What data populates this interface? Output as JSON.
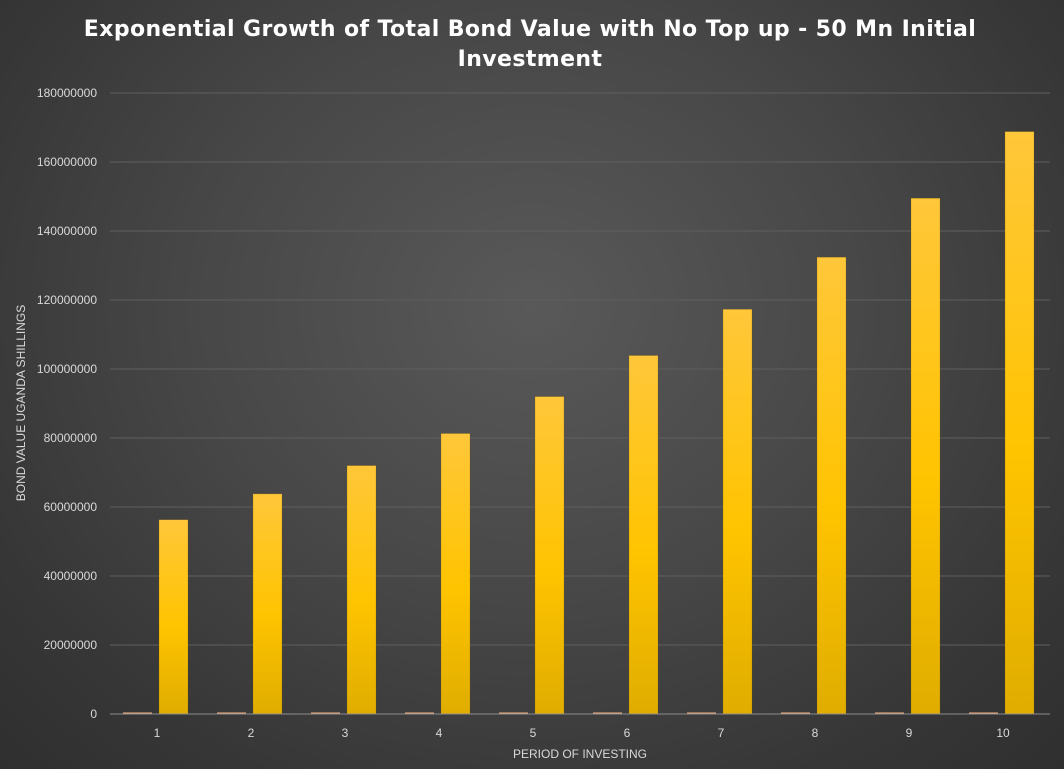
{
  "chart_data": {
    "type": "bar",
    "title_lines": [
      "Exponential Growth of Total Bond Value with No Top up - 50 Mn Initial",
      "Investment"
    ],
    "xlabel": "PERIOD OF INVESTING",
    "ylabel": "BOND VALUE UGANDA SHILLINGS",
    "categories": [
      "1",
      "2",
      "3",
      "4",
      "5",
      "6",
      "7",
      "8",
      "9",
      "10"
    ],
    "series": [
      {
        "values": [
          0,
          0,
          0,
          0,
          0,
          0,
          0,
          0,
          0,
          0
        ],
        "color": "#f4b183"
      },
      {
        "values": [
          56300000,
          63800000,
          72000000,
          81300000,
          92000000,
          103900000,
          117300000,
          132400000,
          149500000,
          168800000
        ],
        "color": "#ffc000"
      }
    ],
    "ylim": [
      0,
      180000000
    ],
    "yticks": [
      "0",
      "20000000",
      "40000000",
      "60000000",
      "80000000",
      "100000000",
      "120000000",
      "140000000",
      "160000000",
      "180000000"
    ],
    "grid": true,
    "legend": "none"
  }
}
